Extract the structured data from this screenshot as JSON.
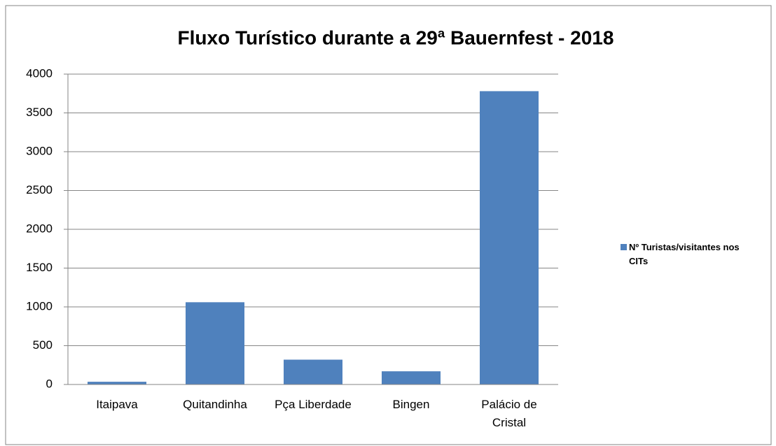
{
  "chart_data": {
    "type": "bar",
    "title": "Fluxo Turístico durante a 29ª Bauernfest - 2018",
    "categories": [
      "Itaipava",
      "Quitandinha",
      "Pça Liberdade",
      "Bingen",
      "Palácio de Cristal"
    ],
    "series": [
      {
        "name": "Nº Turistas/visitantes nos CITs",
        "color": "#4f81bd",
        "values": [
          35,
          1060,
          320,
          170,
          3780
        ]
      }
    ],
    "ylim": [
      0,
      4000
    ],
    "yticks": [
      0,
      500,
      1000,
      1500,
      2000,
      2500,
      3000,
      3500,
      4000
    ],
    "grid": true,
    "legend": "right"
  }
}
